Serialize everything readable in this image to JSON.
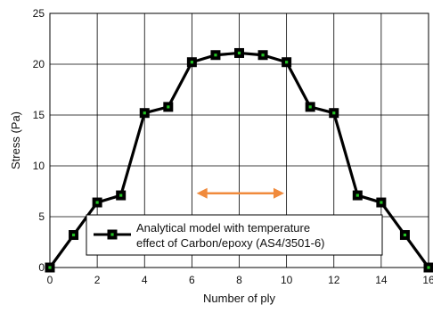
{
  "chart_data": {
    "type": "line",
    "xlabel": "Number of ply",
    "ylabel": "Stress (Pa)",
    "xlim": [
      0,
      16
    ],
    "ylim": [
      0,
      25
    ],
    "xticks": [
      0,
      2,
      4,
      6,
      8,
      10,
      12,
      14,
      16
    ],
    "yticks": [
      0,
      5,
      10,
      15,
      20,
      25
    ],
    "xtick_labels": [
      "0",
      "2",
      "4",
      "6",
      "8",
      "10",
      "12",
      "14",
      "16"
    ],
    "ytick_labels": [
      "0",
      "5",
      "10",
      "15",
      "20",
      "25"
    ],
    "grid": true,
    "legend_placement": "bottom-center",
    "series": [
      {
        "name": "Analytical model with temperature effect of Carbon/epoxy (AS4/3501-6)",
        "x": [
          0,
          1,
          2,
          3,
          4,
          5,
          6,
          7,
          8,
          9,
          10,
          11,
          12,
          13,
          14,
          15,
          16
        ],
        "y": [
          0,
          3.2,
          6.4,
          7.1,
          15.2,
          15.8,
          20.2,
          20.9,
          21.1,
          20.9,
          20.2,
          15.8,
          15.2,
          7.1,
          6.4,
          3.2,
          0
        ],
        "line_color": "#000000",
        "marker": "square",
        "marker_dot_color": "#22c222"
      }
    ],
    "legend_lines": [
      "Analytical model with temperature",
      "effect of Carbon/epoxy (AS4/3501-6)"
    ],
    "annotation": {
      "type": "double-arrow",
      "x_from": 6.2,
      "x_to": 9.9,
      "y": 7.3,
      "color": "#f08a3c"
    }
  }
}
